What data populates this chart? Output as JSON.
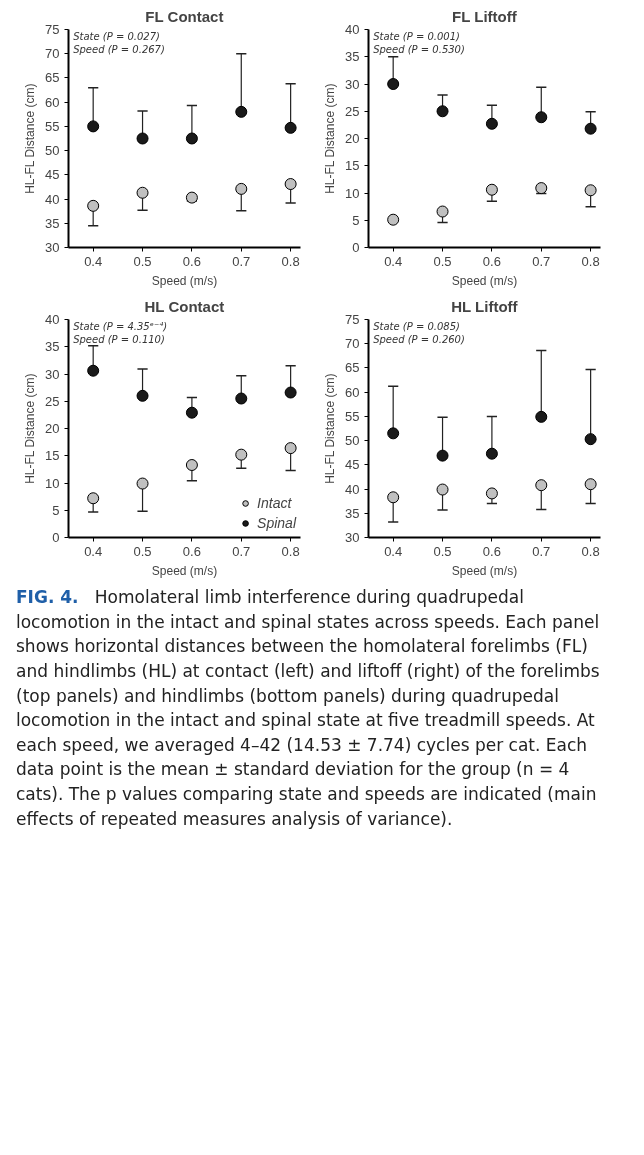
{
  "chart_data": [
    {
      "type": "scatter",
      "title": "FL Contact",
      "xlabel": "Speed (m/s)",
      "ylabel": "HL-FL Distance (cm)",
      "marker": "circle",
      "grid": false,
      "legend": false,
      "x": [
        0.4,
        0.5,
        0.6,
        0.7,
        0.8
      ],
      "xlim": [
        0.35,
        0.82
      ],
      "xticks": [
        0.4,
        0.5,
        0.6,
        0.7,
        0.8
      ],
      "ylim": [
        30,
        75
      ],
      "yticks": [
        30,
        35,
        40,
        45,
        50,
        55,
        60,
        65,
        70,
        75
      ],
      "annotations": [
        "State (P = 0.027)",
        "Speed (P = 0.267)"
      ],
      "series": [
        {
          "color": "#c0c0c0",
          "values": [
            38.6,
            41.3,
            40.3,
            42.1,
            43.1
          ],
          "errors": [
            [
              34.5,
              38.6
            ],
            [
              37.7,
              41.3
            ],
            [
              39.6,
              40.3
            ],
            [
              37.6,
              42.1
            ],
            [
              39.2,
              43.1
            ]
          ]
        },
        {
          "color": "#1a1a1a",
          "values": [
            55,
            52.5,
            52.5,
            58,
            54.7
          ],
          "errors": [
            [
              55,
              63
            ],
            [
              52.5,
              58.2
            ],
            [
              52.5,
              59.3
            ],
            [
              58,
              70
            ],
            [
              54.7,
              63.8
            ]
          ]
        }
      ]
    },
    {
      "type": "scatter",
      "title": "FL Liftoff",
      "xlabel": "Speed (m/s)",
      "ylabel": "HL-FL Distance (cm)",
      "marker": "circle",
      "grid": false,
      "legend": false,
      "x": [
        0.4,
        0.5,
        0.6,
        0.7,
        0.8
      ],
      "xlim": [
        0.35,
        0.82
      ],
      "xticks": [
        0.4,
        0.5,
        0.6,
        0.7,
        0.8
      ],
      "ylim": [
        0,
        40
      ],
      "yticks": [
        0,
        5,
        10,
        15,
        20,
        25,
        30,
        35,
        40
      ],
      "annotations": [
        "State (P = 0.001)",
        "Speed (P = 0.530)"
      ],
      "series": [
        {
          "color": "#c0c0c0",
          "values": [
            5.1,
            6.6,
            10.6,
            10.9,
            10.5
          ],
          "errors": [
            [
              4.8,
              5.1
            ],
            [
              4.6,
              6.6
            ],
            [
              8.5,
              10.6
            ],
            [
              9.9,
              10.9
            ],
            [
              7.5,
              10.5
            ]
          ]
        },
        {
          "color": "#1a1a1a",
          "values": [
            30,
            25,
            22.7,
            23.9,
            21.8
          ],
          "errors": [
            [
              30,
              35
            ],
            [
              25,
              28
            ],
            [
              22.7,
              26.1
            ],
            [
              23.9,
              29.4
            ],
            [
              21.8,
              24.9
            ]
          ]
        }
      ]
    },
    {
      "type": "scatter",
      "title": "HL Contact",
      "xlabel": "Speed (m/s)",
      "ylabel": "HL-FL Distance (cm)",
      "marker": "circle",
      "grid": false,
      "legend": "bottom right",
      "x": [
        0.4,
        0.5,
        0.6,
        0.7,
        0.8
      ],
      "xlim": [
        0.35,
        0.82
      ],
      "xticks": [
        0.4,
        0.5,
        0.6,
        0.7,
        0.8
      ],
      "ylim": [
        0,
        40
      ],
      "yticks": [
        0,
        5,
        10,
        15,
        20,
        25,
        30,
        35,
        40
      ],
      "annotations": [
        "State (P = 4.35ᵉ⁻⁴)",
        "Speed (P = 0.110)"
      ],
      "series": [
        {
          "name": "Intact",
          "color": "#c0c0c0",
          "values": [
            7.2,
            9.9,
            13.3,
            15.2,
            16.4
          ],
          "errors": [
            [
              4.7,
              7.2
            ],
            [
              4.8,
              9.9
            ],
            [
              10.4,
              13.3
            ],
            [
              12.7,
              15.2
            ],
            [
              12.3,
              16.4
            ]
          ]
        },
        {
          "name": "Spinal",
          "color": "#1a1a1a",
          "values": [
            30.6,
            26,
            22.9,
            25.5,
            26.6
          ],
          "errors": [
            [
              30.6,
              35.2
            ],
            [
              26,
              30.9
            ],
            [
              22.9,
              25.7
            ],
            [
              25.5,
              29.7
            ],
            [
              26.6,
              31.5
            ]
          ]
        }
      ]
    },
    {
      "type": "scatter",
      "title": "HL Liftoff",
      "xlabel": "Speed (m/s)",
      "ylabel": "HL-FL Distance (cm)",
      "marker": "circle",
      "grid": false,
      "legend": false,
      "x": [
        0.4,
        0.5,
        0.6,
        0.7,
        0.8
      ],
      "xlim": [
        0.35,
        0.82
      ],
      "xticks": [
        0.4,
        0.5,
        0.6,
        0.7,
        0.8
      ],
      "ylim": [
        30,
        75
      ],
      "yticks": [
        30,
        35,
        40,
        45,
        50,
        55,
        60,
        65,
        70,
        75
      ],
      "annotations": [
        "State (P = 0.085)",
        "Speed (P = 0.260)"
      ],
      "series": [
        {
          "color": "#c0c0c0",
          "values": [
            38.3,
            39.9,
            39.1,
            40.8,
            41.0
          ],
          "errors": [
            [
              33.2,
              38.3
            ],
            [
              35.7,
              39.9
            ],
            [
              37,
              39.1
            ],
            [
              35.8,
              40.8
            ],
            [
              37,
              41.0
            ]
          ]
        },
        {
          "color": "#1a1a1a",
          "values": [
            51.5,
            46.9,
            47.3,
            54.9,
            50.3
          ],
          "errors": [
            [
              51.5,
              61.2
            ],
            [
              46.9,
              54.8
            ],
            [
              47.3,
              55
            ],
            [
              54.9,
              68.6
            ],
            [
              50.3,
              64.7
            ]
          ]
        }
      ]
    },
    {
      "type": "other",
      "annotations": [
        "FIG. 4.",
        "Homolateral limb interference during quadrupedal locomotion in the intact and spinal states across speeds. Each panel shows horizontal distances between the homolateral forelimbs (FL) and hindlimbs (HL) at contact (left) and liftoff (right) of the forelimbs (top panels) and hindlimbs (bottom panels) during quadrupedal locomotion in the intact and spinal state at five treadmill speeds. At each speed, we averaged 4–42 (14.53 ± 7.74) cycles per cat. Each data point is the mean ± standard deviation for the group (n = 4 cats). The p values comparing state and speeds are indicated (main effects of repeated measures analysis of variance)."
      ]
    }
  ]
}
